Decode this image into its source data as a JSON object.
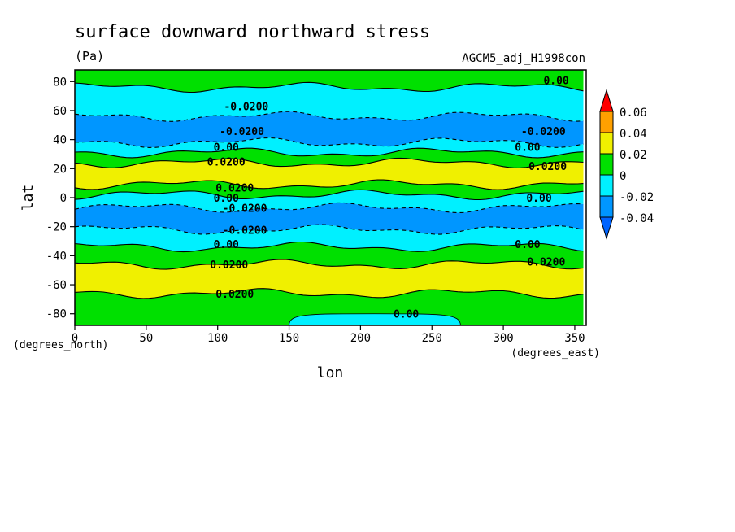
{
  "chart_data": {
    "type": "heatmap",
    "title": "surface downward northward stress",
    "units": "(Pa)",
    "dataset": "AGCM5_adj_H1998con",
    "xlabel": "lon",
    "ylabel": "lat",
    "x_units": "(degrees_east)",
    "y_units": "(degrees_north)",
    "xlim": [
      0,
      358
    ],
    "ylim": [
      -88,
      88
    ],
    "x_ticks": [
      "0",
      "50",
      "100",
      "150",
      "200",
      "250",
      "300",
      "350"
    ],
    "x_tick_values": [
      0,
      50,
      100,
      150,
      200,
      250,
      300,
      350
    ],
    "y_ticks": [
      "80",
      "60",
      "40",
      "20",
      "0",
      "-20",
      "-40",
      "-60",
      "-80"
    ],
    "y_tick_values": [
      80,
      60,
      40,
      20,
      0,
      -20,
      -40,
      -60,
      -80
    ],
    "colorbar": {
      "levels": [
        "0.06",
        "0.04",
        "0.02",
        "0",
        "-0.02",
        "-0.04"
      ],
      "colors": [
        "#ff0000",
        "#ffa000",
        "#f0f000",
        "#00e000",
        "#00f0ff",
        "#0096ff"
      ],
      "over_color": "#ff0000",
      "under_color": "#0064ff"
    },
    "bands": [
      {
        "lat_min": 76,
        "lat_max": 88,
        "value": "0 to 0.02",
        "color": "#00e000"
      },
      {
        "lat_min": 56,
        "lat_max": 76,
        "value": "-0.02 to 0",
        "color": "#00f0ff"
      },
      {
        "lat_min": 38,
        "lat_max": 56,
        "value": "-0.04 to -0.02",
        "color": "#0096ff"
      },
      {
        "lat_min": 31,
        "lat_max": 38,
        "value": "-0.02 to 0",
        "color": "#00f0ff"
      },
      {
        "lat_min": 24,
        "lat_max": 31,
        "value": "0 to 0.02",
        "color": "#00e000"
      },
      {
        "lat_min": 9,
        "lat_max": 24,
        "value": "0.02 to 0.04",
        "color": "#f0f000"
      },
      {
        "lat_min": 2,
        "lat_max": 9,
        "value": "0 to 0.02",
        "color": "#00e000"
      },
      {
        "lat_min": -7,
        "lat_max": 2,
        "value": "-0.02 to 0",
        "color": "#00f0ff"
      },
      {
        "lat_min": -22,
        "lat_max": -7,
        "value": "-0.04 to -0.02",
        "color": "#0096ff"
      },
      {
        "lat_min": -34,
        "lat_max": -22,
        "value": "-0.02 to 0",
        "color": "#00f0ff"
      },
      {
        "lat_min": -46,
        "lat_max": -34,
        "value": "0 to 0.02",
        "color": "#00e000"
      },
      {
        "lat_min": -66,
        "lat_max": -46,
        "value": "0.02 to 0.04",
        "color": "#f0f000"
      },
      {
        "lat_min": -88,
        "lat_max": -66,
        "value": "0 to 0.02",
        "color": "#00e000"
      }
    ],
    "patches": [
      {
        "lon_min": 150,
        "lon_max": 270,
        "lat_min": -88,
        "lat_max": -80,
        "value": "-0.02 to 0",
        "color": "#00f0ff"
      }
    ],
    "contour_labels": [
      {
        "text": "0.00",
        "lon": 337,
        "lat": 81
      },
      {
        "text": "-0.0200",
        "lon": 120,
        "lat": 63
      },
      {
        "text": "-0.0200",
        "lon": 117,
        "lat": 46
      },
      {
        "text": "-0.0200",
        "lon": 328,
        "lat": 46
      },
      {
        "text": "0.00",
        "lon": 106,
        "lat": 35
      },
      {
        "text": "0.00",
        "lon": 317,
        "lat": 35
      },
      {
        "text": "0.0200",
        "lon": 106,
        "lat": 25
      },
      {
        "text": "0.0200",
        "lon": 331,
        "lat": 22
      },
      {
        "text": "0.0200",
        "lon": 112,
        "lat": 7
      },
      {
        "text": "0.00",
        "lon": 106,
        "lat": 0
      },
      {
        "text": "0.00",
        "lon": 325,
        "lat": 0
      },
      {
        "text": "-0.0200",
        "lon": 119,
        "lat": -7
      },
      {
        "text": "-0.0200",
        "lon": 119,
        "lat": -22
      },
      {
        "text": "0.00",
        "lon": 106,
        "lat": -32
      },
      {
        "text": "0.00",
        "lon": 317,
        "lat": -32
      },
      {
        "text": "0.0200",
        "lon": 108,
        "lat": -46
      },
      {
        "text": "0.0200",
        "lon": 330,
        "lat": -44
      },
      {
        "text": "0.0200",
        "lon": 112,
        "lat": -66
      },
      {
        "text": "0.00",
        "lon": 232,
        "lat": -80
      }
    ]
  }
}
